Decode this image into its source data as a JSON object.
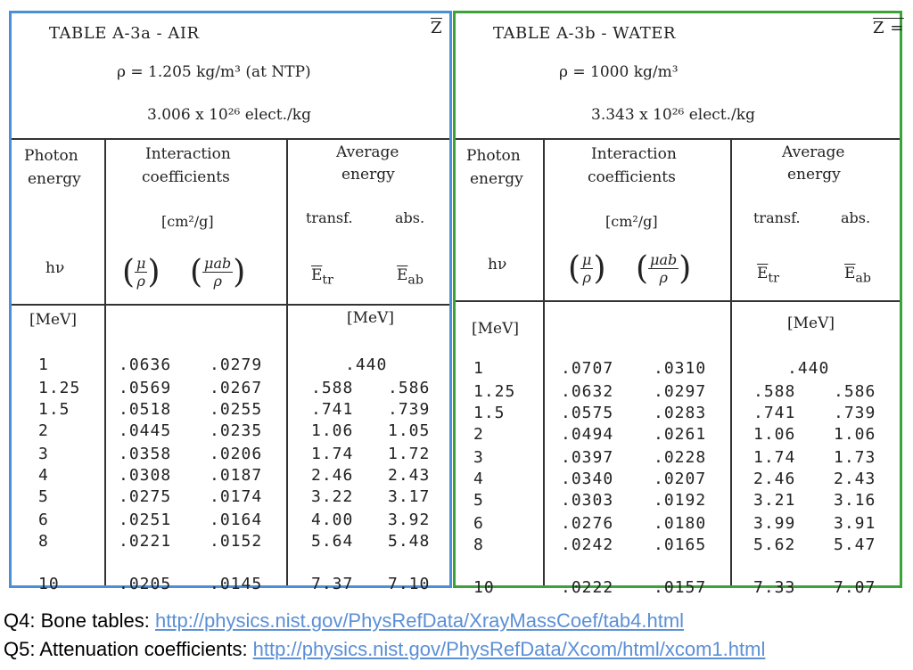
{
  "air": {
    "title": "TABLE A-3a - AIR",
    "corner": "Z",
    "density": "ρ = 1.205  kg/m³  (at NTP)",
    "electrons": "3.006 x 10²⁶  elect./kg",
    "col_energy": [
      "Photon",
      "energy"
    ],
    "col_coeff": [
      "Interaction",
      "coefficients"
    ],
    "col_avg": [
      "Average",
      "energy"
    ],
    "coeff_unit": "[cm²/g]",
    "transf": "transf.",
    "abs": "abs.",
    "hv": "hν",
    "mu": "μ",
    "mu_ab": "μab",
    "rho": "ρ",
    "etr": "E",
    "etr_sub": "tr",
    "eab": "E",
    "eab_sub": "ab",
    "unit_energy": "[MeV]",
    "unit_avg": "[MeV]",
    "rows": [
      {
        "e": "1",
        "mu": ".0636",
        "muab": ".0279",
        "etr": ".440",
        "eab": ""
      },
      {
        "e": "1.25",
        "mu": ".0569",
        "muab": ".0267",
        "etr": ".588",
        "eab": ".586"
      },
      {
        "e": "1.5",
        "mu": ".0518",
        "muab": ".0255",
        "etr": ".741",
        "eab": ".739"
      },
      {
        "e": "2",
        "mu": ".0445",
        "muab": ".0235",
        "etr": "1.06",
        "eab": "1.05"
      },
      {
        "e": "3",
        "mu": ".0358",
        "muab": ".0206",
        "etr": "1.74",
        "eab": "1.72"
      },
      {
        "e": "4",
        "mu": ".0308",
        "muab": ".0187",
        "etr": "2.46",
        "eab": "2.43"
      },
      {
        "e": "5",
        "mu": ".0275",
        "muab": ".0174",
        "etr": "3.22",
        "eab": "3.17"
      },
      {
        "e": "6",
        "mu": ".0251",
        "muab": ".0164",
        "etr": "4.00",
        "eab": "3.92"
      },
      {
        "e": "8",
        "mu": ".0221",
        "muab": ".0152",
        "etr": "5.64",
        "eab": "5.48"
      },
      {
        "e": "10",
        "mu": ".0205",
        "muab": ".0145",
        "etr": "7.37",
        "eab": "7.10"
      }
    ]
  },
  "water": {
    "title": "TABLE A-3b - WATER",
    "corner": "Z =",
    "density": "ρ = 1000  kg/m³",
    "electrons": "3.343 x 10²⁶  elect./kg",
    "col_energy": [
      "Photon",
      "energy"
    ],
    "col_coeff": [
      "Interaction",
      "coefficients"
    ],
    "col_avg": [
      "Average",
      "energy"
    ],
    "coeff_unit": "[cm²/g]",
    "transf": "transf.",
    "abs": "abs.",
    "hv": "hν",
    "mu": "μ",
    "mu_ab": "μab",
    "rho": "ρ",
    "etr": "E",
    "etr_sub": "tr",
    "eab": "E",
    "eab_sub": "ab",
    "unit_energy": "[MeV]",
    "unit_avg": "[MeV]",
    "rows": [
      {
        "e": "1",
        "mu": ".0707",
        "muab": ".0310",
        "etr": ".440",
        "eab": ""
      },
      {
        "e": "1.25",
        "mu": ".0632",
        "muab": ".0297",
        "etr": ".588",
        "eab": ".586"
      },
      {
        "e": "1.5",
        "mu": ".0575",
        "muab": ".0283",
        "etr": ".741",
        "eab": ".739"
      },
      {
        "e": "2",
        "mu": ".0494",
        "muab": ".0261",
        "etr": "1.06",
        "eab": "1.06"
      },
      {
        "e": "3",
        "mu": ".0397",
        "muab": ".0228",
        "etr": "1.74",
        "eab": "1.73"
      },
      {
        "e": "4",
        "mu": ".0340",
        "muab": ".0207",
        "etr": "2.46",
        "eab": "2.43"
      },
      {
        "e": "5",
        "mu": ".0303",
        "muab": ".0192",
        "etr": "3.21",
        "eab": "3.16"
      },
      {
        "e": "6",
        "mu": ".0276",
        "muab": ".0180",
        "etr": "3.99",
        "eab": "3.91"
      },
      {
        "e": "8",
        "mu": ".0242",
        "muab": ".0165",
        "etr": "5.62",
        "eab": "5.47"
      },
      {
        "e": "10",
        "mu": ".0222",
        "muab": ".0157",
        "etr": "7.33",
        "eab": "7.07"
      }
    ]
  },
  "footer": {
    "q4_label": "Q4: Bone tables: ",
    "q4_link": "http://physics.nist.gov/PhysRefData/XrayMassCoef/tab4.html",
    "q5_label": "Q5: Attenuation coefficients: ",
    "q5_link": "http://physics.nist.gov/PhysRefData/Xcom/html/xcom1.html"
  },
  "colors": {
    "air_border": "#4a90d9",
    "water_border": "#3aa33a",
    "link": "#5b8fd6"
  }
}
